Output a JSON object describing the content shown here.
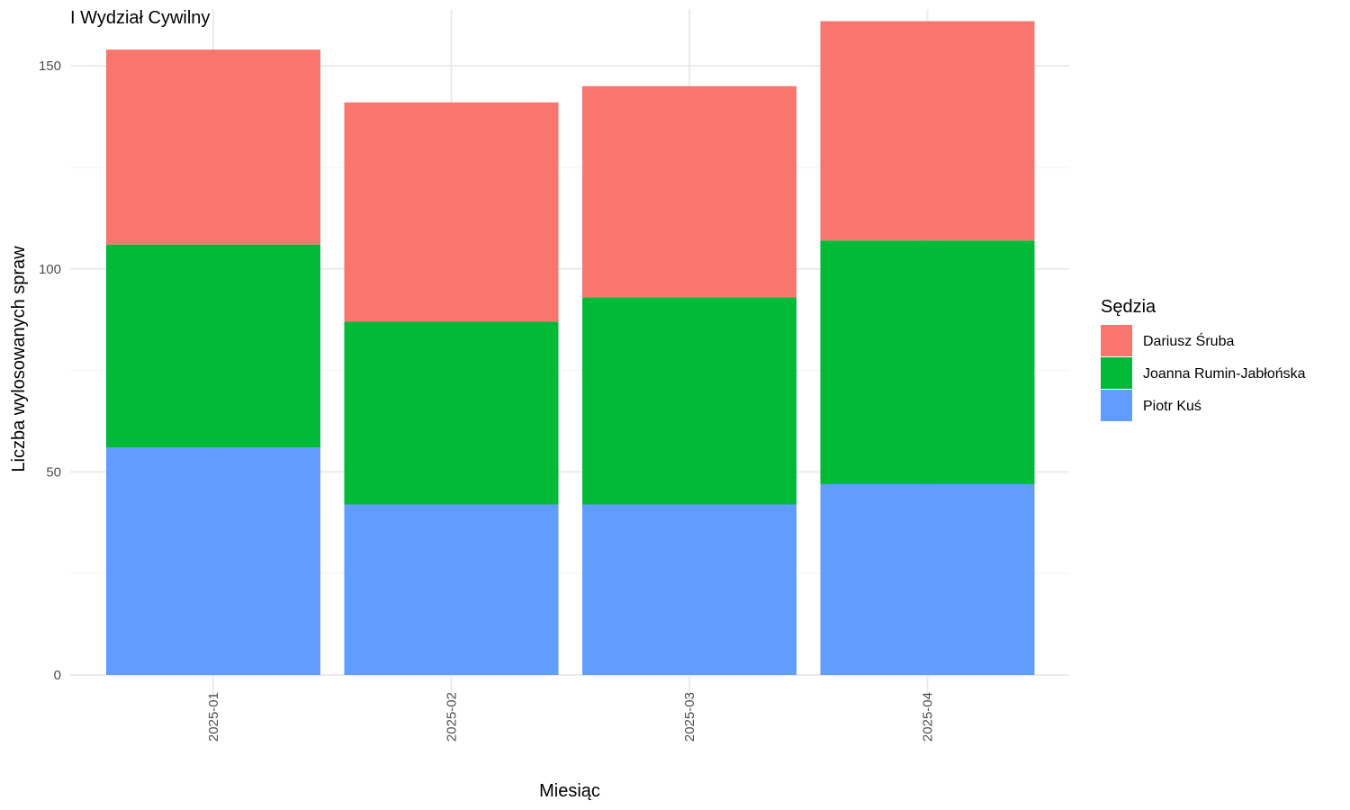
{
  "chart_data": {
    "type": "bar",
    "stacked": true,
    "title": "I Wydział Cywilny",
    "xlabel": "Miesiąc",
    "ylabel": "Liczba wylosowanych spraw",
    "categories": [
      "2025-01",
      "2025-02",
      "2025-03",
      "2025-04"
    ],
    "ylim": [
      0,
      164
    ],
    "yticks": [
      0,
      50,
      100,
      150
    ],
    "grid": true,
    "legend": {
      "title": "Sędzia",
      "position": "right"
    },
    "series": [
      {
        "name": "Piotr Kuś",
        "color": "#619CFF",
        "values": [
          56,
          42,
          42,
          47
        ]
      },
      {
        "name": "Joanna Rumin-Jabłońska",
        "color": "#00BA38",
        "values": [
          50,
          45,
          51,
          60
        ]
      },
      {
        "name": "Dariusz Śruba",
        "color": "#F8766D",
        "values": [
          48,
          54,
          52,
          54
        ]
      }
    ],
    "legend_order": [
      "Dariusz Śruba",
      "Joanna Rumin-Jabłońska",
      "Piotr Kuś"
    ]
  }
}
